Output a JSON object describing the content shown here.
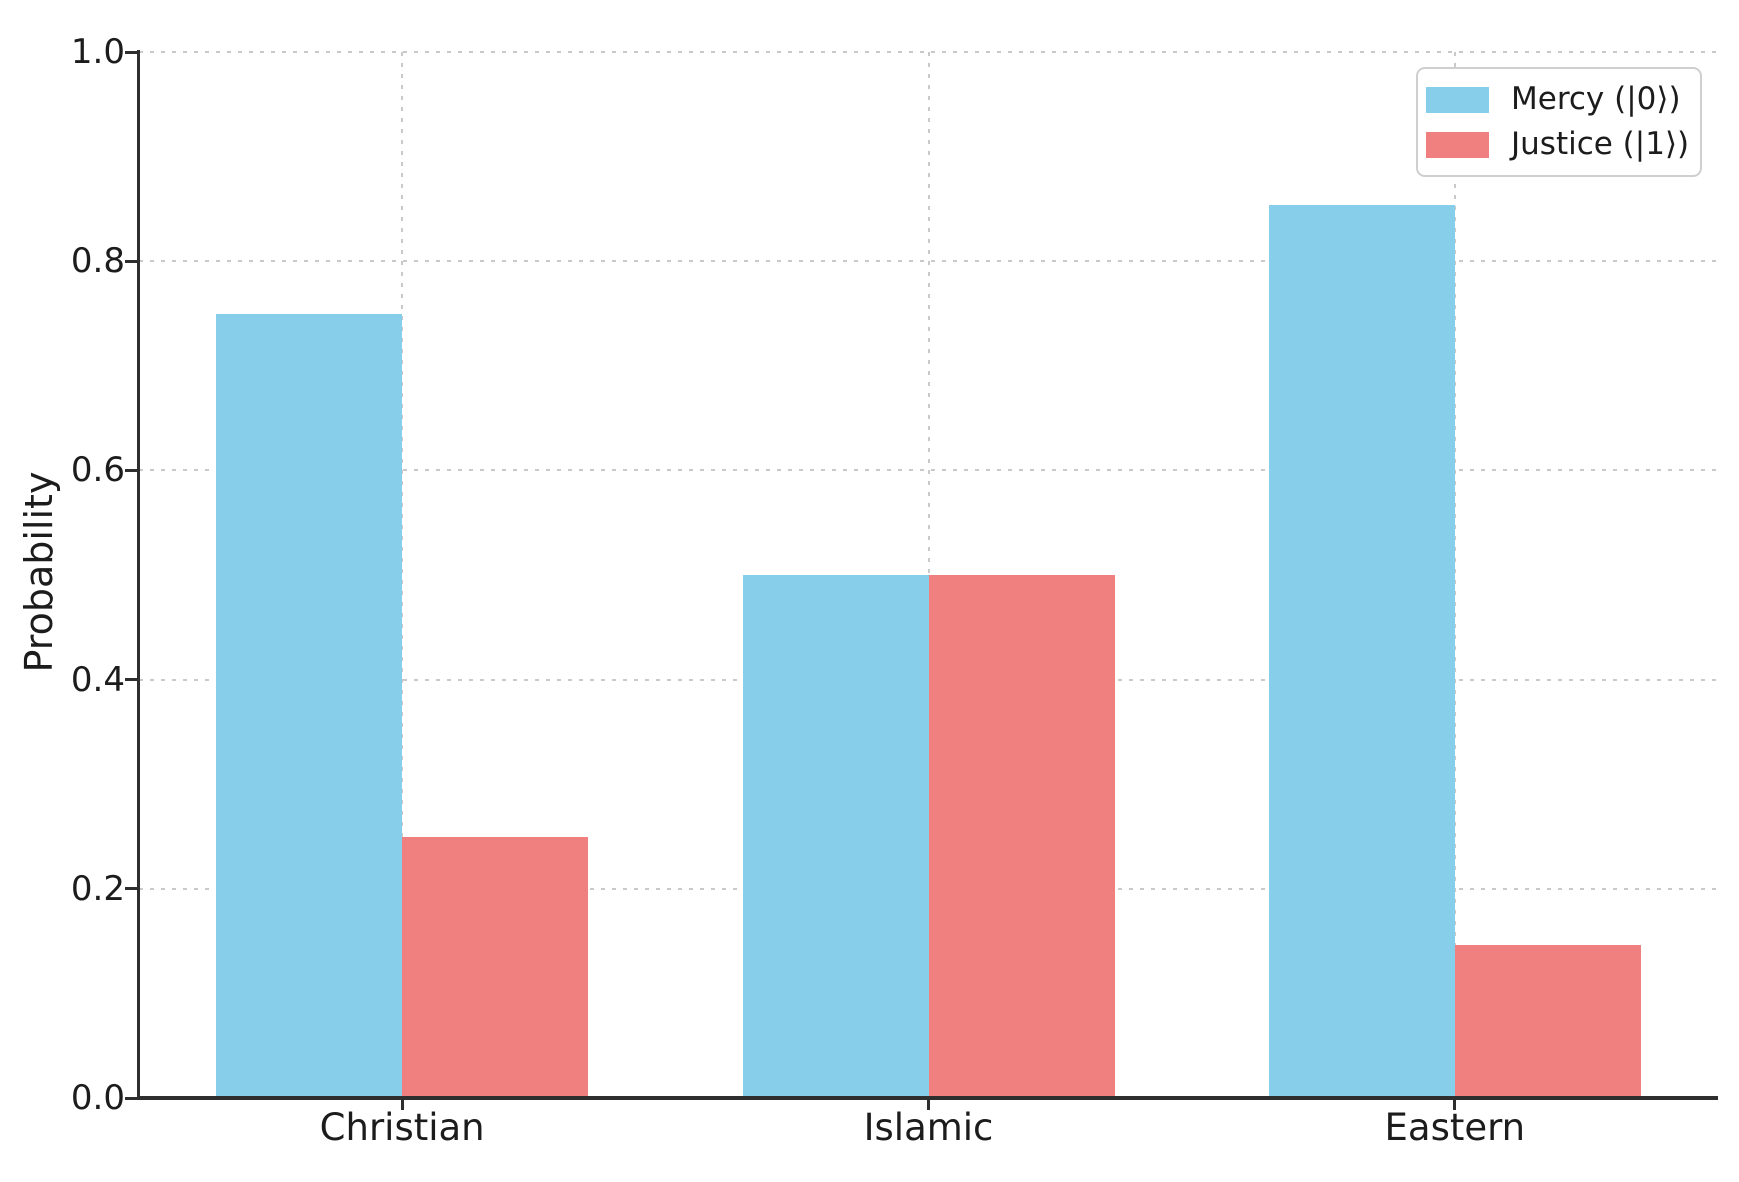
{
  "chart_data": {
    "type": "bar",
    "categories": [
      "Christian",
      "Islamic",
      "Eastern"
    ],
    "series": [
      {
        "name": "Mercy (|0⟩)",
        "color": "#87CEEB",
        "values": [
          0.75,
          0.5,
          0.854
        ]
      },
      {
        "name": "Justice (|1⟩)",
        "color": "#F08080",
        "values": [
          0.25,
          0.5,
          0.146
        ]
      }
    ],
    "title": "",
    "xlabel": "",
    "ylabel": "Probability",
    "ylim": [
      0.0,
      1.0
    ],
    "ytick_labels": [
      "0.0",
      "0.2",
      "0.4",
      "0.6",
      "0.8",
      "1.0"
    ],
    "grid": "dotted, horizontal at 0.2 intervals and vertical at category centers",
    "legend_position": "upper right",
    "axis_color": "#2e2e2e",
    "grid_color": "#c9c9c9",
    "background_color": "#ffffff"
  }
}
